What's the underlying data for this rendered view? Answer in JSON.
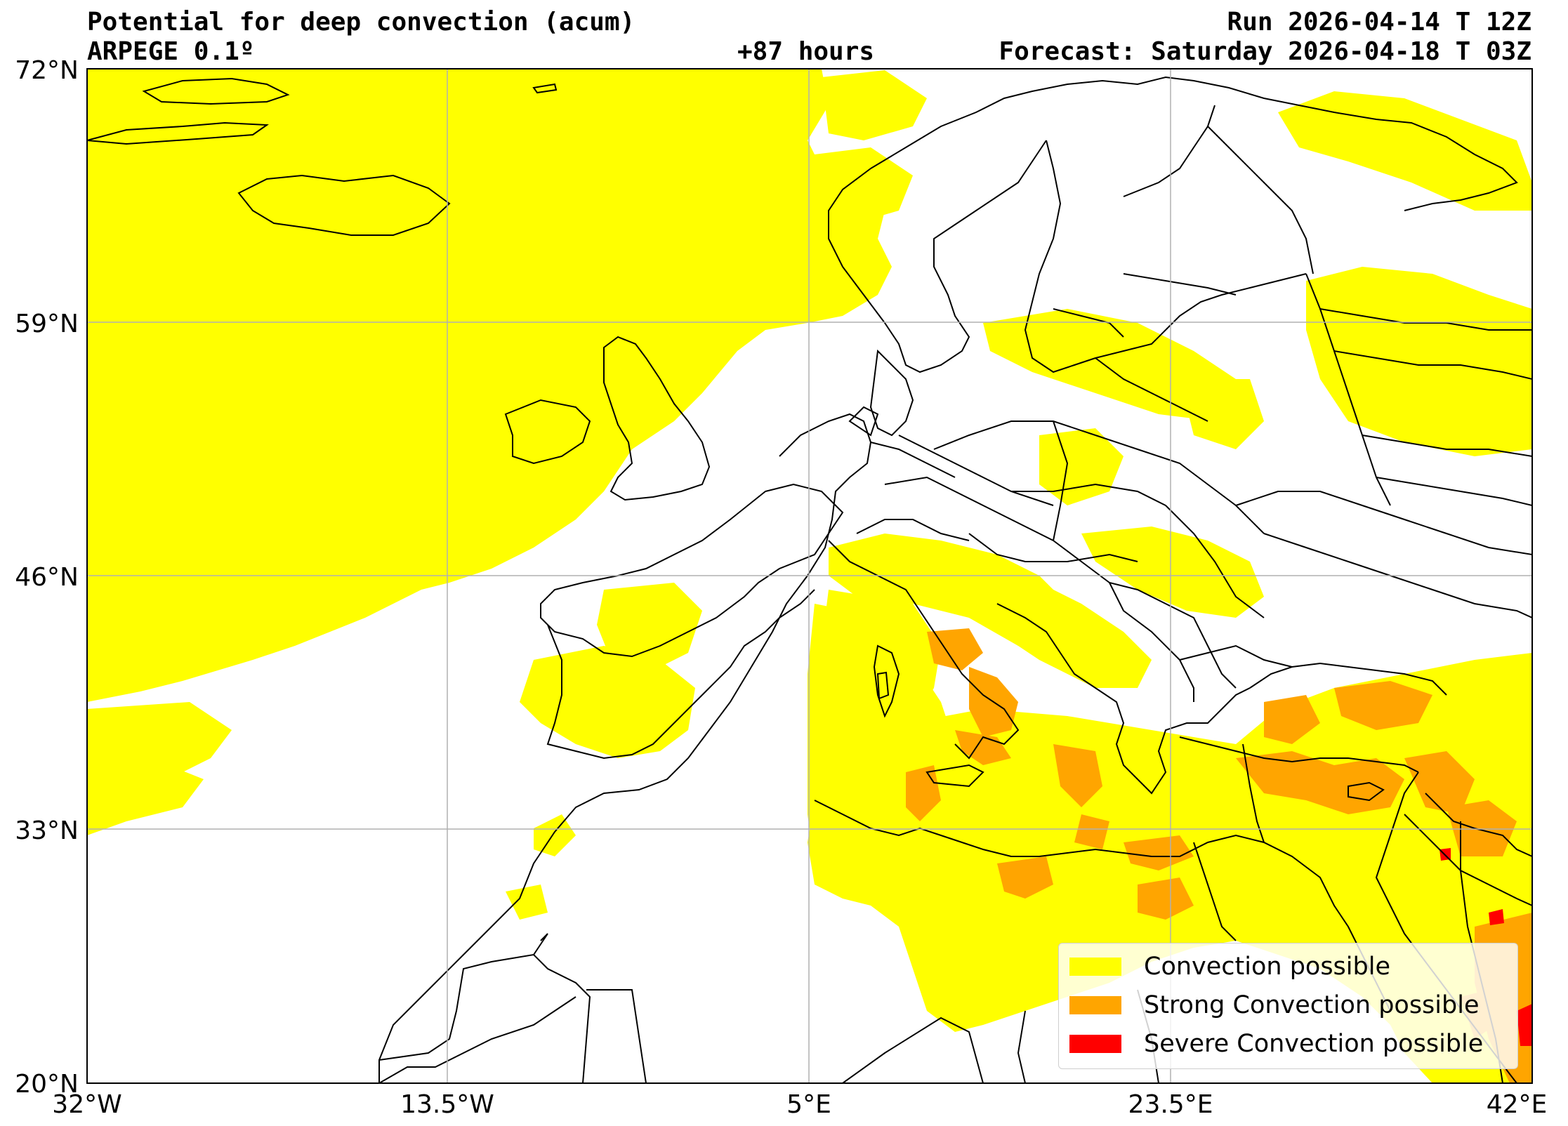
{
  "header": {
    "title": "Potential for deep convection (acum)",
    "model": "ARPEGE 0.1º",
    "lead": "+87 hours",
    "run": "Run 2026-04-14 T 12Z",
    "forecast": "Forecast: Saturday 2026-04-18 T 03Z"
  },
  "axes": {
    "lat_ticks": [
      "72°N",
      "59°N",
      "46°N",
      "33°N",
      "20°N"
    ],
    "lon_ticks": [
      "32°W",
      "13.5°W",
      "5°E",
      "23.5°E",
      "42°E"
    ]
  },
  "extent": {
    "lon": [
      -32,
      42
    ],
    "lat": [
      20,
      72
    ]
  },
  "colors": {
    "convection": "#ffff00",
    "strong": "#ffa500",
    "severe": "#ff0000",
    "coast": "#000000",
    "grid": "#b0b0b0"
  },
  "legend": {
    "items": [
      {
        "label": "Convection possible",
        "color": "#ffff00"
      },
      {
        "label": "Strong Convection possible",
        "color": "#ffa500"
      },
      {
        "label": "Severe Convection possible",
        "color": "#ff0000"
      }
    ]
  }
}
